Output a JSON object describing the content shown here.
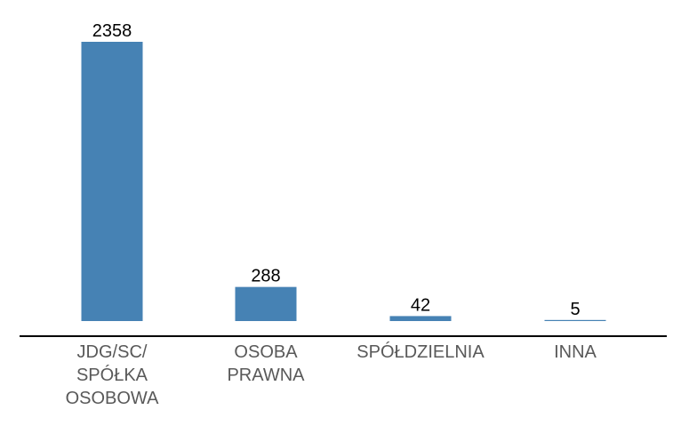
{
  "chart_data": {
    "type": "bar",
    "categories": [
      [
        "JDG/SC/",
        "SPÓŁKA",
        "OSOBOWA"
      ],
      [
        "OSOBA",
        "PRAWNA"
      ],
      [
        "SPÓŁDZIELNIA"
      ],
      [
        "INNA"
      ]
    ],
    "values": [
      2358,
      288,
      42,
      5
    ],
    "data_labels": [
      "2358",
      "288",
      "42",
      "5"
    ],
    "title": "",
    "xlabel": "",
    "ylabel": "",
    "ylim": [
      0,
      2358
    ],
    "grid": false,
    "legend": "none",
    "colors": {
      "bar": "#4682B4",
      "axis": "#000000",
      "value_text": "#000000",
      "category_text": "#595959"
    }
  }
}
